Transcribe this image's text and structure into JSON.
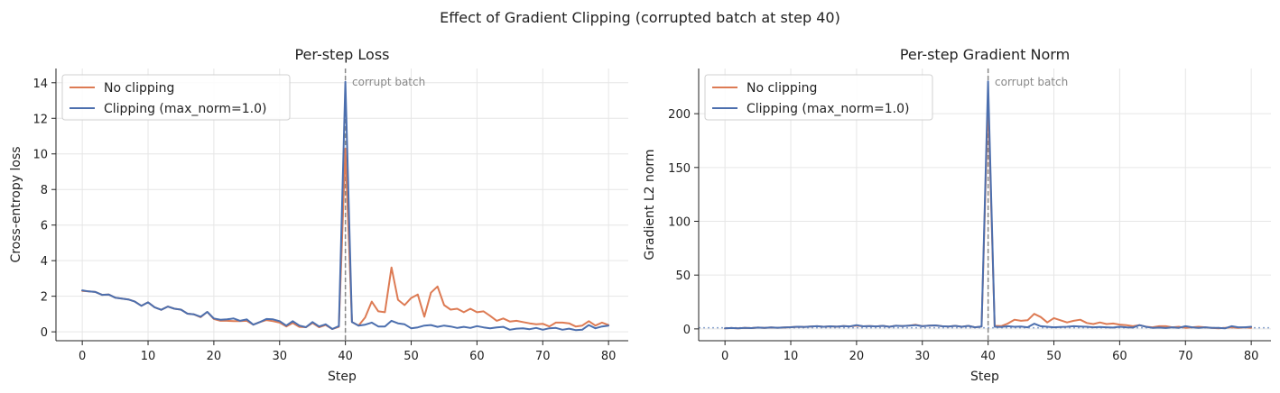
{
  "suptitle": "Effect of Gradient Clipping  (corrupted batch at step 40)",
  "colors": {
    "no_clip": "#dd7b54",
    "clip": "#4c6fae",
    "event": "#888888",
    "grid": "#e6e6e6"
  },
  "chart_data": [
    {
      "type": "line",
      "title": "Per-step Loss",
      "xlabel": "Step",
      "ylabel": "Cross-entropy loss",
      "xlim": [
        -4,
        83
      ],
      "ylim": [
        -0.5,
        14.8
      ],
      "xticks": [
        0,
        10,
        20,
        30,
        40,
        50,
        60,
        70,
        80
      ],
      "yticks": [
        0,
        2,
        4,
        6,
        8,
        10,
        12,
        14
      ],
      "grid": true,
      "legend": "top-left",
      "annotation": {
        "x": 40,
        "text": "corrupt batch"
      },
      "series": [
        {
          "name": "No clipping",
          "color": "#dd7b54",
          "values": [
            2.3,
            2.27,
            2.24,
            2.08,
            2.1,
            1.92,
            1.87,
            1.82,
            1.7,
            1.46,
            1.66,
            1.38,
            1.24,
            1.42,
            1.3,
            1.25,
            1.02,
            0.98,
            0.82,
            1.12,
            0.72,
            0.62,
            0.62,
            0.6,
            0.6,
            0.62,
            0.4,
            0.55,
            0.66,
            0.6,
            0.52,
            0.3,
            0.5,
            0.28,
            0.26,
            0.5,
            0.26,
            0.38,
            0.16,
            0.28,
            10.3,
            0.55,
            0.35,
            0.8,
            1.7,
            1.15,
            1.1,
            3.62,
            1.8,
            1.5,
            1.9,
            2.1,
            0.85,
            2.2,
            2.55,
            1.5,
            1.25,
            1.3,
            1.1,
            1.3,
            1.1,
            1.15,
            0.9,
            0.62,
            0.75,
            0.58,
            0.62,
            0.55,
            0.48,
            0.42,
            0.45,
            0.3,
            0.52,
            0.52,
            0.48,
            0.3,
            0.35,
            0.6,
            0.35,
            0.52,
            0.38
          ]
        },
        {
          "name": "Clipping (max_norm=1.0)",
          "color": "#4c6fae",
          "values": [
            2.33,
            2.27,
            2.24,
            2.08,
            2.1,
            1.92,
            1.87,
            1.82,
            1.7,
            1.46,
            1.66,
            1.38,
            1.24,
            1.42,
            1.3,
            1.25,
            1.02,
            0.98,
            0.85,
            1.12,
            0.75,
            0.68,
            0.7,
            0.75,
            0.62,
            0.7,
            0.4,
            0.55,
            0.72,
            0.7,
            0.6,
            0.35,
            0.6,
            0.35,
            0.26,
            0.55,
            0.3,
            0.42,
            0.16,
            0.32,
            14.05,
            0.55,
            0.35,
            0.4,
            0.52,
            0.3,
            0.3,
            0.62,
            0.48,
            0.42,
            0.2,
            0.25,
            0.35,
            0.38,
            0.28,
            0.35,
            0.3,
            0.22,
            0.28,
            0.22,
            0.32,
            0.25,
            0.2,
            0.25,
            0.28,
            0.12,
            0.18,
            0.2,
            0.15,
            0.22,
            0.12,
            0.2,
            0.22,
            0.12,
            0.18,
            0.1,
            0.12,
            0.38,
            0.2,
            0.3,
            0.35
          ]
        }
      ]
    },
    {
      "type": "line",
      "title": "Per-step Gradient Norm",
      "xlabel": "Step",
      "ylabel": "Gradient L2 norm",
      "xlim": [
        -4,
        83
      ],
      "ylim": [
        -11,
        242
      ],
      "xticks": [
        0,
        10,
        20,
        30,
        40,
        50,
        60,
        70,
        80
      ],
      "yticks": [
        0,
        50,
        100,
        150,
        200
      ],
      "grid": true,
      "legend": "top-left",
      "annotation": {
        "x": 40,
        "text": "corrupt batch"
      },
      "reference_line_y": 1.0,
      "series": [
        {
          "name": "No clipping",
          "color": "#dd7b54",
          "values": [
            0.5,
            0.8,
            0.6,
            1.0,
            0.7,
            1.2,
            1.0,
            1.3,
            1.1,
            1.4,
            1.6,
            2.0,
            1.8,
            2.2,
            2.5,
            2.0,
            2.4,
            2.1,
            2.6,
            2.3,
            3.0,
            2.4,
            2.6,
            2.3,
            2.8,
            2.0,
            2.9,
            2.6,
            3.0,
            3.8,
            2.5,
            3.0,
            3.2,
            2.5,
            2.2,
            2.8,
            2.0,
            2.8,
            1.5,
            2.2,
            215,
            2.8,
            2.6,
            5.0,
            8.5,
            7.5,
            8.0,
            14.0,
            11.0,
            6.0,
            10.0,
            8.0,
            6.0,
            7.5,
            8.5,
            5.5,
            4.5,
            6.0,
            4.5,
            5.0,
            4.0,
            3.5,
            2.5,
            3.5,
            2.0,
            1.5,
            2.5,
            2.5,
            1.5,
            2.0,
            1.0,
            1.5,
            2.0,
            1.5,
            1.0,
            0.5,
            1.0,
            1.5,
            1.0,
            1.5,
            1.0
          ]
        },
        {
          "name": "Clipping (max_norm=1.0)",
          "color": "#4c6fae",
          "values": [
            0.5,
            0.8,
            0.6,
            1.0,
            0.7,
            1.2,
            1.0,
            1.3,
            1.1,
            1.4,
            1.6,
            2.0,
            1.8,
            2.2,
            2.5,
            2.0,
            2.4,
            2.1,
            2.6,
            2.3,
            3.5,
            2.4,
            2.6,
            2.3,
            2.8,
            2.0,
            2.9,
            2.6,
            3.0,
            3.5,
            2.5,
            3.0,
            3.2,
            2.5,
            2.2,
            2.8,
            2.0,
            2.8,
            1.5,
            2.2,
            230,
            2.0,
            1.8,
            2.5,
            2.0,
            2.2,
            1.5,
            4.8,
            2.5,
            2.0,
            1.5,
            1.8,
            2.0,
            2.5,
            2.2,
            2.0,
            1.5,
            1.8,
            1.5,
            1.2,
            2.0,
            1.5,
            1.2,
            3.5,
            2.0,
            1.0,
            1.2,
            0.8,
            1.5,
            1.0,
            2.5,
            1.5,
            1.0,
            1.5,
            1.0,
            1.0,
            0.5,
            2.5,
            1.5,
            1.5,
            2.0
          ]
        }
      ]
    }
  ]
}
